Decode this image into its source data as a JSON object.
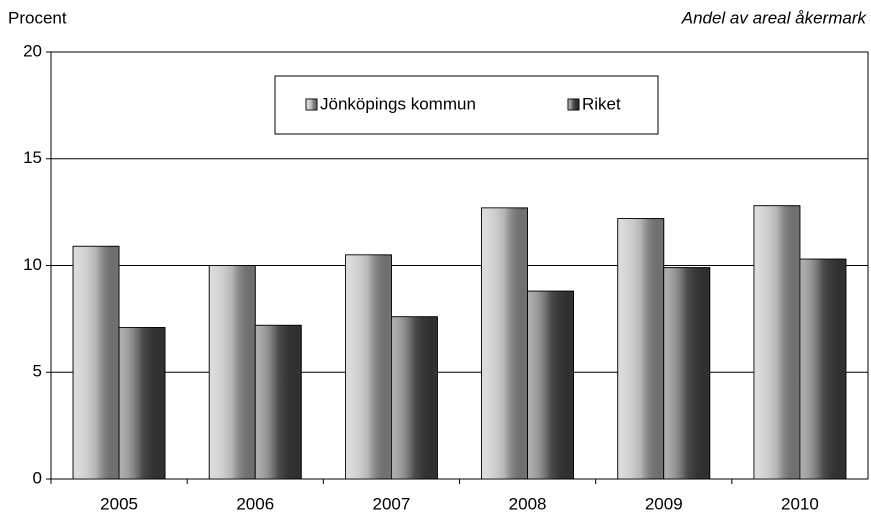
{
  "chart_data": {
    "type": "bar",
    "ylabel": "Procent",
    "subtitle": "Andel av areal åkermark",
    "categories": [
      "2005",
      "2006",
      "2007",
      "2008",
      "2009",
      "2010"
    ],
    "series": [
      {
        "name": "Jönköpings kommun",
        "color": "#b4b4b4",
        "values": [
          10.9,
          10.0,
          10.5,
          12.7,
          12.2,
          12.8
        ]
      },
      {
        "name": "Riket",
        "color": "#4e4e4e",
        "values": [
          7.1,
          7.2,
          7.6,
          8.8,
          9.9,
          10.3
        ]
      }
    ],
    "ylim": [
      0,
      20
    ],
    "yticks": [
      0,
      5,
      10,
      15,
      20
    ],
    "grid": true
  }
}
